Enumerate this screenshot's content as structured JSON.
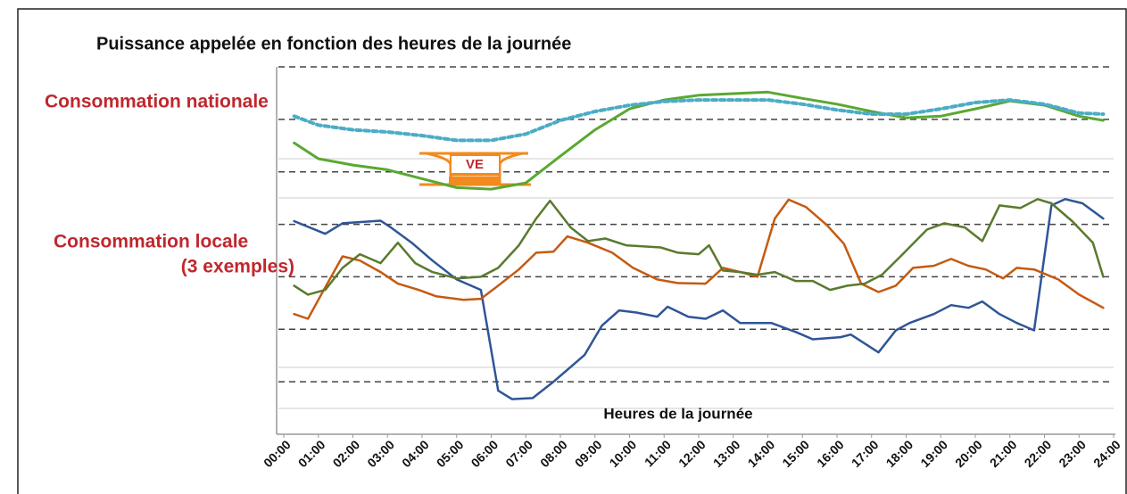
{
  "chart_data": {
    "type": "line",
    "title": "Puissance appelée en fonction des heures de la journée",
    "annotations": {
      "national": "Consommation nationale",
      "local": "Consommation locale",
      "examples": "(3 exemples)",
      "ve": "VE"
    },
    "x_label": "Heures de la journée",
    "xlim": [
      0,
      24
    ],
    "ylim": [
      0,
      70
    ],
    "yticks": [
      10,
      20,
      30,
      40,
      50,
      60,
      70
    ],
    "grid": true,
    "xticks": [
      {
        "value": 0,
        "label": "00:00"
      },
      {
        "value": 1,
        "label": "01:00"
      },
      {
        "value": 2,
        "label": "02:00"
      },
      {
        "value": 3,
        "label": "03:00"
      },
      {
        "value": 4,
        "label": "04:00"
      },
      {
        "value": 5,
        "label": "05:00"
      },
      {
        "value": 6,
        "label": "06:00"
      },
      {
        "value": 7,
        "label": "07:00"
      },
      {
        "value": 8,
        "label": "08:00"
      },
      {
        "value": 9,
        "label": "09:00"
      },
      {
        "value": 10,
        "label": "10:00"
      },
      {
        "value": 11,
        "label": "11:00"
      },
      {
        "value": 12,
        "label": "12:00"
      },
      {
        "value": 13,
        "label": "13:00"
      },
      {
        "value": 14,
        "label": "14:00"
      },
      {
        "value": 15,
        "label": "15:00"
      },
      {
        "value": 16,
        "label": "16:00"
      },
      {
        "value": 17,
        "label": "17:00"
      },
      {
        "value": 18,
        "label": "18:00"
      },
      {
        "value": 19,
        "label": "19:00"
      },
      {
        "value": 20,
        "label": "20:00"
      },
      {
        "value": 21,
        "label": "21:00"
      },
      {
        "value": 22,
        "label": "22:00"
      },
      {
        "value": 23,
        "label": "23:00"
      },
      {
        "value": 24,
        "label": "24:00"
      }
    ],
    "series": [
      {
        "color": "#5aa832",
        "dash": false,
        "width": 3,
        "x": [
          0.3,
          1,
          2,
          3,
          4,
          5,
          6,
          7,
          8,
          9,
          10,
          11,
          12,
          13,
          14,
          15,
          16,
          17,
          18,
          19,
          20,
          21,
          22,
          23,
          23.7
        ],
        "values": [
          55.5,
          52.5,
          51.3,
          50.4,
          48.7,
          47,
          46.7,
          47.9,
          53,
          58,
          62,
          63.7,
          64.6,
          64.9,
          65.2,
          64,
          62.9,
          61.5,
          60.3,
          60.6,
          62,
          63.5,
          62.7,
          60.6,
          59.8
        ]
      },
      {
        "color": "#4bacc6",
        "dash": true,
        "width": 4,
        "x": [
          0.3,
          1,
          2,
          3,
          4,
          5,
          6,
          7,
          8,
          9,
          10,
          11,
          12,
          13,
          14,
          15,
          16,
          17,
          18,
          19,
          20,
          21,
          22,
          23,
          23.7
        ],
        "values": [
          60.6,
          58.9,
          58,
          57.6,
          56.9,
          56,
          56,
          57.2,
          59.8,
          61.5,
          62.7,
          63.4,
          63.7,
          63.7,
          63.7,
          62.9,
          61.8,
          61,
          61,
          62,
          63.2,
          63.7,
          62.9,
          61.2,
          61
        ]
      },
      {
        "color": "#2e5597",
        "dash": false,
        "width": 2.5,
        "x": [
          0.3,
          1.2,
          1.7,
          2.8,
          3.1,
          3.7,
          4.3,
          5,
          5.7,
          6.2,
          6.6,
          7.2,
          7.8,
          8.7,
          9.2,
          9.7,
          10.2,
          10.8,
          11.1,
          11.7,
          12.2,
          12.7,
          13.2,
          14.1,
          14.8,
          15.3,
          16.1,
          16.4,
          17.2,
          17.7,
          18.1,
          18.8,
          19.3,
          19.8,
          20.2,
          20.7,
          21.2,
          21.7,
          22.2,
          22.6,
          23.1,
          23.7
        ],
        "values": [
          40.6,
          38.2,
          40.2,
          40.7,
          39.4,
          36.5,
          33.1,
          29.5,
          27.5,
          8.3,
          6.7,
          6.9,
          10,
          15.1,
          20.7,
          23.6,
          23.2,
          22.4,
          24.3,
          22.4,
          22,
          23.6,
          21.2,
          21.2,
          19.5,
          18.1,
          18.5,
          19,
          15.6,
          19.8,
          21.2,
          22.9,
          24.6,
          24.1,
          25.3,
          22.9,
          21.2,
          19.8,
          43.6,
          44.8,
          44,
          41.1
        ]
      },
      {
        "color": "#c55a11",
        "dash": false,
        "width": 2.5,
        "x": [
          0.3,
          0.7,
          1.2,
          1.7,
          2.2,
          2.8,
          3.3,
          3.9,
          4.4,
          5.2,
          5.7,
          6.2,
          6.8,
          7.3,
          7.8,
          8.2,
          8.8,
          9.5,
          10.1,
          10.8,
          11.4,
          12.2,
          12.7,
          13.2,
          13.7,
          14.2,
          14.6,
          15.1,
          15.7,
          16.2,
          16.7,
          17.2,
          17.7,
          18.2,
          18.8,
          19.3,
          19.8,
          20.3,
          20.8,
          21.2,
          21.7,
          22.4,
          23,
          23.7
        ],
        "values": [
          22.9,
          22,
          28,
          33.9,
          33.1,
          30.9,
          28.7,
          27.5,
          26.3,
          25.6,
          25.8,
          28.3,
          31.4,
          34.6,
          34.8,
          37.7,
          36.5,
          34.6,
          31.7,
          29.5,
          28.8,
          28.7,
          31.7,
          30.9,
          30,
          41.1,
          44.7,
          43.3,
          39.9,
          36.3,
          28.7,
          27.1,
          28.3,
          31.7,
          32.1,
          33.4,
          32.1,
          31.4,
          29.7,
          31.7,
          31.4,
          29.5,
          26.6,
          24.1
        ]
      },
      {
        "color": "#5a7a2e",
        "dash": false,
        "width": 2.5,
        "x": [
          0.3,
          0.7,
          1.2,
          1.7,
          2.2,
          2.8,
          3.3,
          3.8,
          4.3,
          5,
          5.7,
          6.2,
          6.8,
          7.3,
          7.7,
          8.3,
          8.8,
          9.3,
          9.9,
          10.9,
          11.4,
          12,
          12.3,
          12.7,
          13.2,
          13.7,
          14.2,
          14.8,
          15.3,
          15.8,
          16.3,
          16.8,
          17.3,
          17.9,
          18.6,
          19.1,
          19.7,
          20.2,
          20.7,
          21.3,
          21.8,
          22.2,
          22.8,
          23.4,
          23.7
        ],
        "values": [
          28.3,
          26.6,
          27.5,
          31.7,
          34.3,
          32.6,
          36.5,
          32.6,
          30.9,
          29.7,
          30,
          31.7,
          36,
          41.1,
          44.5,
          39.4,
          36.8,
          37.3,
          36,
          35.6,
          34.6,
          34.3,
          36,
          31.2,
          30.9,
          30.4,
          30.9,
          29.2,
          29.2,
          27.5,
          28.3,
          28.7,
          30.4,
          34.3,
          39,
          40.2,
          39.4,
          36.8,
          43.6,
          43.1,
          44.8,
          44,
          40.6,
          36.5,
          30
        ]
      }
    ]
  }
}
